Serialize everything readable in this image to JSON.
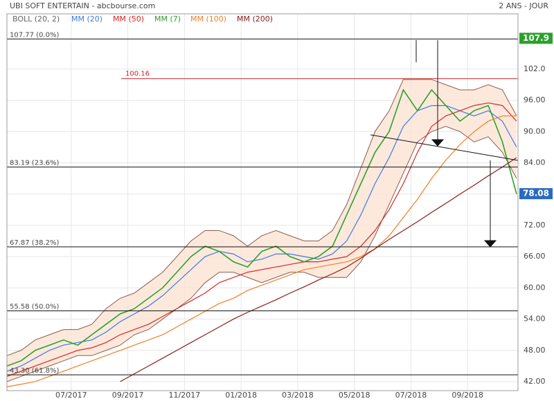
{
  "chart_data": {
    "type": "line",
    "title": "UBI SOFT ENTERTAIN - abcbourse.com",
    "subtitle": "2 ANS - JOUR",
    "xlim": [
      0,
      18.05
    ],
    "xticks": [
      {
        "value": 2.27,
        "label": "07/2017"
      },
      {
        "value": 4.27,
        "label": "09/2017"
      },
      {
        "value": 6.27,
        "label": "11/2017"
      },
      {
        "value": 8.27,
        "label": "01/2018"
      },
      {
        "value": 10.27,
        "label": "03/2018"
      },
      {
        "value": 12.27,
        "label": "05/2018"
      },
      {
        "value": 14.27,
        "label": "07/2018"
      },
      {
        "value": 16.27,
        "label": "09/2018"
      }
    ],
    "ylim": [
      40.27,
      112.6
    ],
    "yticks": [
      {
        "value": 42,
        "label": "42.00"
      },
      {
        "value": 48,
        "label": "48.00"
      },
      {
        "value": 54,
        "label": "54.00"
      },
      {
        "value": 60,
        "label": "60.00"
      },
      {
        "value": 66,
        "label": "66.00"
      },
      {
        "value": 72,
        "label": "72.00"
      },
      {
        "value": 78,
        "label": "78.00"
      },
      {
        "value": 84,
        "label": "84.00"
      },
      {
        "value": 90,
        "label": "90.00"
      },
      {
        "value": 96,
        "label": "96.00"
      },
      {
        "value": 102,
        "label": "102.0"
      }
    ],
    "grid": true,
    "band": {
      "name": "BOLL (20, 2)",
      "color": "#8b5a4a",
      "fill": "#fce3d3",
      "upper": [
        47,
        48,
        50,
        51,
        52,
        52,
        53,
        56,
        58,
        59,
        61,
        63,
        66,
        69,
        71,
        71,
        70,
        68,
        70,
        71,
        70,
        69,
        69,
        71,
        76,
        83,
        90,
        94,
        100,
        100,
        100,
        99,
        98,
        98,
        99,
        98,
        93
      ],
      "lower": [
        42,
        43,
        44,
        45,
        46,
        47,
        47,
        48,
        49,
        51,
        52,
        54,
        56,
        58,
        61,
        63,
        63,
        62,
        61,
        62,
        63,
        63,
        62,
        62,
        62,
        65,
        70,
        76,
        82,
        88,
        90,
        91,
        90,
        88,
        89,
        86,
        81
      ]
    },
    "x": [
      0,
      0.5,
      1,
      1.5,
      2,
      2.5,
      3,
      3.5,
      4,
      4.5,
      5,
      5.5,
      6,
      6.5,
      7,
      7.5,
      8,
      8.5,
      9,
      9.5,
      10,
      10.5,
      11,
      11.5,
      12,
      12.5,
      13,
      13.5,
      14,
      14.5,
      15,
      15.5,
      16,
      16.5,
      17,
      17.5,
      18
    ],
    "series": [
      {
        "name": "MM (20)",
        "color": "#3f78e0",
        "values": [
          44,
          45,
          46.5,
          48,
          49,
          49.5,
          50,
          51.5,
          53.5,
          55,
          56.5,
          58.5,
          61,
          63.5,
          66,
          67,
          66.5,
          65,
          65.5,
          66.5,
          66.5,
          66,
          65.5,
          66.5,
          69,
          74,
          80,
          85,
          91,
          94,
          95,
          95,
          94,
          93,
          94,
          92,
          87
        ]
      },
      {
        "name": "MM (50)",
        "color": "#d62728",
        "values": [
          43,
          44,
          45,
          46,
          47,
          48,
          48.5,
          49.5,
          51,
          52,
          53,
          54.5,
          56,
          57.5,
          59,
          61,
          62,
          63,
          63.5,
          64,
          64.5,
          65,
          65,
          65.5,
          66,
          68,
          71,
          75,
          80,
          86,
          91,
          93,
          94,
          95,
          95.5,
          95,
          92
        ]
      },
      {
        "name": "MM (7)",
        "color": "#2ca02c",
        "values": [
          45,
          46,
          48,
          49,
          50,
          49,
          51,
          53,
          55,
          56,
          58,
          60,
          63,
          66,
          68,
          67,
          65,
          64,
          67,
          68,
          66,
          65,
          66,
          68,
          74,
          80,
          86,
          90,
          98,
          94,
          98,
          95,
          92,
          94,
          95,
          88,
          78
        ]
      },
      {
        "name": "MM (100)",
        "color": "#f07f27",
        "values": [
          41,
          41.5,
          42,
          43,
          44,
          45,
          46,
          47,
          48,
          49,
          50,
          51,
          52.5,
          54,
          55.5,
          57,
          58,
          59.5,
          60.5,
          61.5,
          62.5,
          63.5,
          64,
          64.5,
          65,
          66,
          67.5,
          70,
          73.5,
          77,
          81,
          84.5,
          87.5,
          90,
          92,
          93,
          93
        ]
      },
      {
        "name": "MM (200)",
        "color": "#8b1a1a",
        "values": [
          null,
          null,
          null,
          null,
          null,
          null,
          null,
          null,
          42,
          43.5,
          45,
          46.5,
          48,
          49.5,
          51,
          52.5,
          54,
          55.3,
          56.5,
          57.7,
          59,
          60.2,
          61.5,
          62.7,
          64,
          65.7,
          67.5,
          69.3,
          71,
          72.7,
          74.5,
          76.2,
          78,
          79.7,
          81.5,
          83.2,
          85
        ]
      }
    ],
    "levels": [
      {
        "value": 107.77,
        "label": "107.77  (0.0%)"
      },
      {
        "value": 83.19,
        "label": "83.19  (23.6%)"
      },
      {
        "value": 67.87,
        "label": "67.87  (38.2%)"
      },
      {
        "value": 55.58,
        "label": "55.58  (50.0%)"
      },
      {
        "value": 43.3,
        "label": "43.30  (61.8%)"
      }
    ],
    "resistance": {
      "value": 100.16,
      "label": "100.16",
      "color": "#cc2222"
    },
    "markers": [
      {
        "value": 107.9,
        "color": "#2ca02c"
      },
      {
        "value": 78.08,
        "color": "#2a6bbf"
      }
    ]
  }
}
